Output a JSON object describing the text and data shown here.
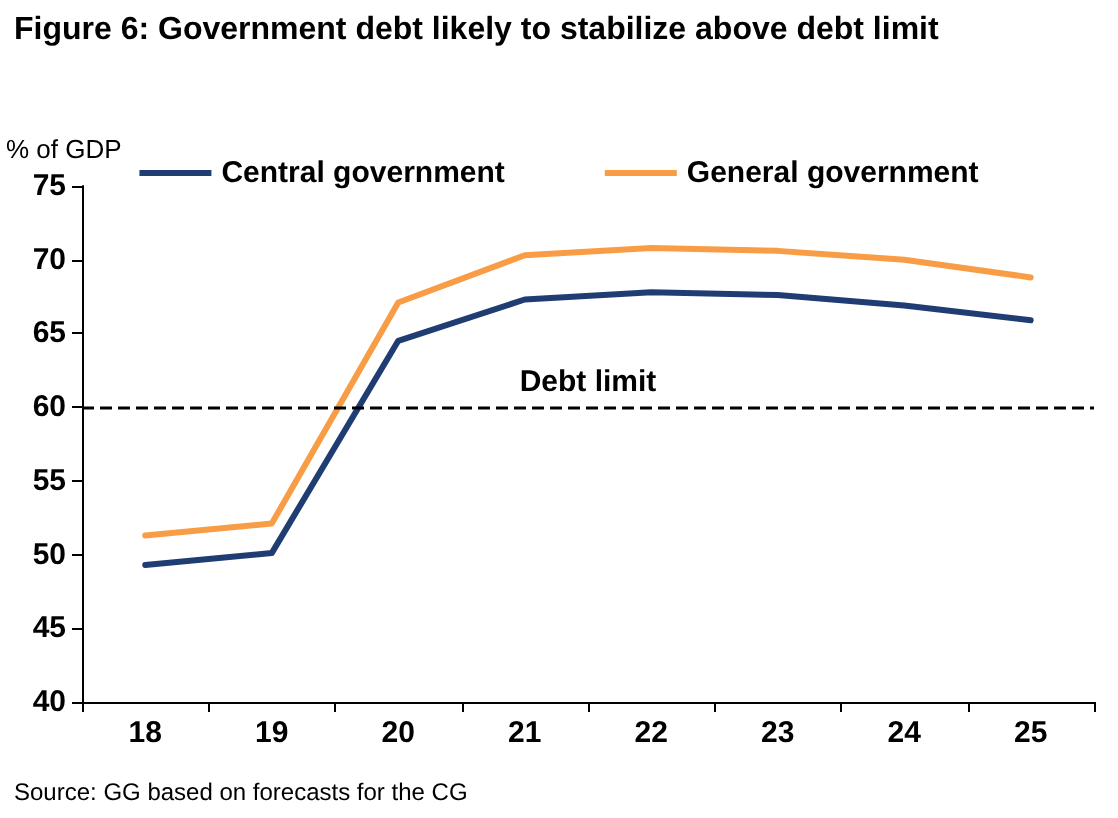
{
  "chart_data": {
    "type": "line",
    "title": "Figure 6: Government debt likely to stabilize above debt limit",
    "ylabel": "% of GDP",
    "categories": [
      "18",
      "19",
      "20",
      "21",
      "22",
      "23",
      "24",
      "25"
    ],
    "series": [
      {
        "name": "Central government",
        "color": "#1f3d73",
        "values": [
          49.3,
          50.1,
          64.5,
          67.3,
          67.8,
          67.6,
          66.9,
          65.9
        ]
      },
      {
        "name": "General government",
        "color": "#f89d45",
        "values": [
          51.3,
          52.1,
          67.1,
          70.3,
          70.8,
          70.6,
          70.0,
          68.8
        ]
      }
    ],
    "ylim": [
      40,
      75
    ],
    "yticks": [
      40,
      45,
      50,
      55,
      60,
      65,
      70,
      75
    ],
    "grid": false,
    "legend": "top",
    "marker": "none",
    "line_style": "solid",
    "ref_lines": [
      {
        "axis": "y",
        "value": 60,
        "label": "Debt limit",
        "color": "#000000",
        "line_style": "dashed"
      }
    ],
    "annotations": [
      "Source: GG based on forecasts for the CG"
    ]
  }
}
